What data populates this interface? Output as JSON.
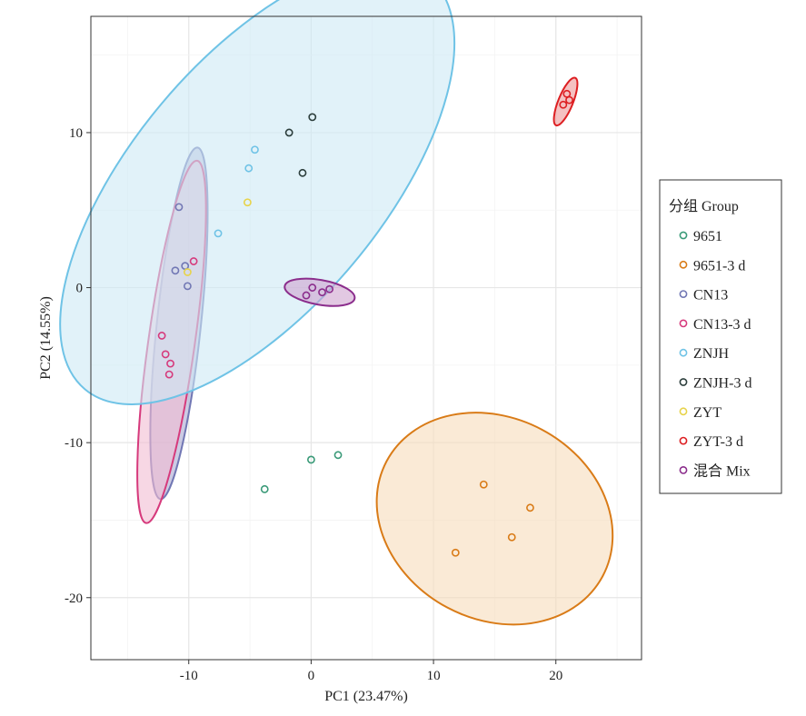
{
  "chart_data": {
    "type": "scatter",
    "xlabel": "PC1 (23.47%)",
    "ylabel": "PC2 (14.55%)",
    "xlim": [
      -18,
      27
    ],
    "ylim": [
      -24,
      17.5
    ],
    "x_ticks": [
      -10,
      0,
      10,
      20
    ],
    "y_ticks": [
      -20,
      -10,
      0,
      10
    ],
    "grid": true,
    "legend": {
      "title": "分组 Group",
      "position": "right"
    },
    "series": [
      {
        "name": "9651",
        "color": "#3a9a78",
        "points": [
          [
            -3.8,
            -13.0
          ],
          [
            0.0,
            -11.1
          ],
          [
            2.2,
            -10.8
          ]
        ],
        "ellipse": null
      },
      {
        "name": "9651-3 d",
        "color": "#d97b17",
        "points": [
          [
            11.8,
            -17.1
          ],
          [
            14.1,
            -12.7
          ],
          [
            16.4,
            -16.1
          ],
          [
            17.9,
            -14.2
          ]
        ],
        "ellipse": {
          "cx": 15.0,
          "cy": -14.9,
          "rx": 10.0,
          "ry": 6.5,
          "angle_deg": 28,
          "fill": "#f6dcbb"
        }
      },
      {
        "name": "CN13",
        "color": "#7177b4",
        "points": [
          [
            -10.8,
            5.2
          ],
          [
            -11.1,
            1.1
          ],
          [
            -10.3,
            1.4
          ],
          [
            -10.1,
            0.1
          ]
        ],
        "ellipse": {
          "cx": -10.8,
          "cy": -2.3,
          "rx": 1.8,
          "ry": 11.4,
          "angle_deg": 6,
          "fill": "#aaa8d0"
        }
      },
      {
        "name": "CN13-3 d",
        "color": "#d63a7c",
        "points": [
          [
            -9.6,
            1.7
          ],
          [
            -12.2,
            -3.1
          ],
          [
            -11.9,
            -4.3
          ],
          [
            -11.5,
            -4.9
          ],
          [
            -11.6,
            -5.6
          ]
        ],
        "ellipse": {
          "cx": -11.4,
          "cy": -3.5,
          "rx": 1.9,
          "ry": 11.8,
          "angle_deg": 8,
          "fill": "#f2bcd2"
        }
      },
      {
        "name": "ZNJH",
        "color": "#6fc3e6",
        "points": [
          [
            -4.6,
            8.9
          ],
          [
            -5.1,
            7.7
          ],
          [
            -7.6,
            3.5
          ]
        ],
        "ellipse": {
          "cx": -4.4,
          "cy": 6.7,
          "rx": 10.2,
          "ry": 17.3,
          "angle_deg": 40,
          "fill": "#cde9f5"
        }
      },
      {
        "name": "ZNJH-3 d",
        "color": "#2c3e3c",
        "points": [
          [
            0.1,
            11.0
          ],
          [
            -1.8,
            10.0
          ],
          [
            -0.7,
            7.4
          ]
        ],
        "ellipse": null
      },
      {
        "name": "ZYT",
        "color": "#e7d34a",
        "points": [
          [
            -5.2,
            5.5
          ],
          [
            -10.1,
            1.0
          ]
        ],
        "ellipse": null
      },
      {
        "name": "ZYT-3 d",
        "color": "#dd1f22",
        "points": [
          [
            20.9,
            12.5
          ],
          [
            20.6,
            11.8
          ],
          [
            21.1,
            12.1
          ]
        ],
        "ellipse": {
          "cx": 20.8,
          "cy": 12.0,
          "rx": 0.6,
          "ry": 1.65,
          "angle_deg": 22,
          "fill": "#ee9797"
        }
      },
      {
        "name": "混合 Mix",
        "color": "#8b2d8c",
        "points": [
          [
            0.1,
            0.0
          ],
          [
            -0.4,
            -0.5
          ],
          [
            0.9,
            -0.3
          ],
          [
            1.5,
            -0.1
          ]
        ],
        "ellipse": {
          "cx": 0.7,
          "cy": -0.3,
          "rx": 2.9,
          "ry": 0.8,
          "angle_deg": 10,
          "fill": "#cea4cf"
        }
      }
    ]
  }
}
